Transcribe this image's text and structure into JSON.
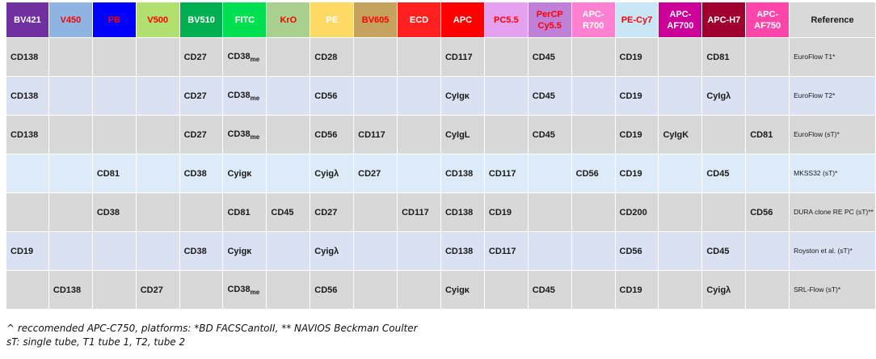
{
  "headers": [
    {
      "label": "BV421",
      "bg": "#7030a0",
      "fg": "#ffffff"
    },
    {
      "label": "V450",
      "bg": "#8db4e2",
      "fg": "#ff0000"
    },
    {
      "label": "PB",
      "bg": "#0000ff",
      "fg": "#ff0000"
    },
    {
      "label": "V500",
      "bg": "#b2e070",
      "fg": "#ff0000"
    },
    {
      "label": "BV510",
      "bg": "#00b050",
      "fg": "#ffffff"
    },
    {
      "label": "FITC",
      "bg": "#00e050",
      "fg": "#ffffff"
    },
    {
      "label": "KrO",
      "bg": "#a9d08e",
      "fg": "#ff0000"
    },
    {
      "label": "PE",
      "bg": "#ffd966",
      "fg": "#ffffff"
    },
    {
      "label": "BV605",
      "bg": "#c5a35e",
      "fg": "#ff0000"
    },
    {
      "label": "ECD",
      "bg": "#ff2020",
      "fg": "#ffffff"
    },
    {
      "label": "APC",
      "bg": "#ff0000",
      "fg": "#ffffff"
    },
    {
      "label": "PC5.5",
      "bg": "#e6a0f0",
      "fg": "#ff0000"
    },
    {
      "label": "PerCP Cy5.5",
      "bg": "#c080d8",
      "fg": "#ff0000"
    },
    {
      "label": "APC-R700",
      "bg": "#ff80d0",
      "fg": "#ffffff"
    },
    {
      "label": "PE-Cy7",
      "bg": "#c9e6f7",
      "fg": "#ff0000"
    },
    {
      "label": "APC-AF700",
      "bg": "#cc0099",
      "fg": "#ffffff"
    },
    {
      "label": "APC-H7",
      "bg": "#a00030",
      "fg": "#ffffff"
    },
    {
      "label": "APC-AF750",
      "bg": "#ff44aa",
      "fg": "#ffffff"
    },
    {
      "label": "Reference",
      "bg": "#d9d9d9",
      "fg": "#1a1a1a"
    }
  ],
  "rows": [
    {
      "shade": "g",
      "cells": [
        "CD138",
        "",
        "",
        "",
        "CD27",
        "CD38_me",
        "",
        "CD28",
        "",
        "",
        "CD117",
        "",
        "CD45",
        "",
        "CD19",
        "",
        "CD81",
        "",
        "EuroFlow T1*"
      ]
    },
    {
      "shade": "l",
      "cells": [
        "CD138",
        "",
        "",
        "",
        "CD27",
        "CD38_me",
        "",
        "CD56",
        "",
        "",
        "CyIgκ",
        "",
        "CD45",
        "",
        "CD19",
        "",
        "CyIgλ",
        "",
        "EuroFlow T2*"
      ]
    },
    {
      "shade": "g",
      "cells": [
        "CD138",
        "",
        "",
        "",
        "CD27",
        "CD38_me",
        "",
        "CD56",
        "CD117",
        "",
        "CyIgL",
        "",
        "CD45",
        "",
        "CD19",
        "CyIgK",
        "",
        "CD81",
        "EuroFlow (sT)*"
      ]
    },
    {
      "shade": "b",
      "cells": [
        "",
        "",
        "CD81",
        "",
        "CD38",
        "Cyigκ",
        "",
        "Cyigλ",
        "CD27",
        "",
        "CD138",
        "CD117",
        "",
        "CD56",
        "CD19",
        "",
        "CD45",
        "",
        "MKSS32 (sT)*"
      ]
    },
    {
      "shade": "g",
      "cells": [
        "",
        "",
        "CD38",
        "",
        "",
        "CD81",
        "CD45",
        "CD27",
        "",
        "CD117",
        "CD138",
        "CD19",
        "",
        "",
        "CD200",
        "",
        "",
        "CD56",
        "DURA clone RE PC (sT)**"
      ]
    },
    {
      "shade": "l",
      "cells": [
        "CD19",
        "",
        "",
        "",
        "CD38",
        "Cyigκ",
        "",
        "Cyigλ",
        "",
        "",
        "CD138",
        "CD117",
        "",
        "",
        "CD56",
        "",
        "CD45",
        "",
        "Royston et al. (sT)*"
      ]
    },
    {
      "shade": "g",
      "cells": [
        "",
        "CD138",
        "",
        "CD27",
        "",
        "CD38_me",
        "",
        "CD56",
        "",
        "",
        "Cyigκ",
        "",
        "CD45",
        "",
        "CD19",
        "",
        "Cyigλ",
        "",
        "SRL-Flow (sT)*"
      ]
    }
  ],
  "notes": [
    "^ reccomended APC-C750, platforms: *BD FACSCantoII, ** NAVIOS Beckman Coulter",
    "sT: single tube, T1 tube 1, T2, tube 2"
  ]
}
